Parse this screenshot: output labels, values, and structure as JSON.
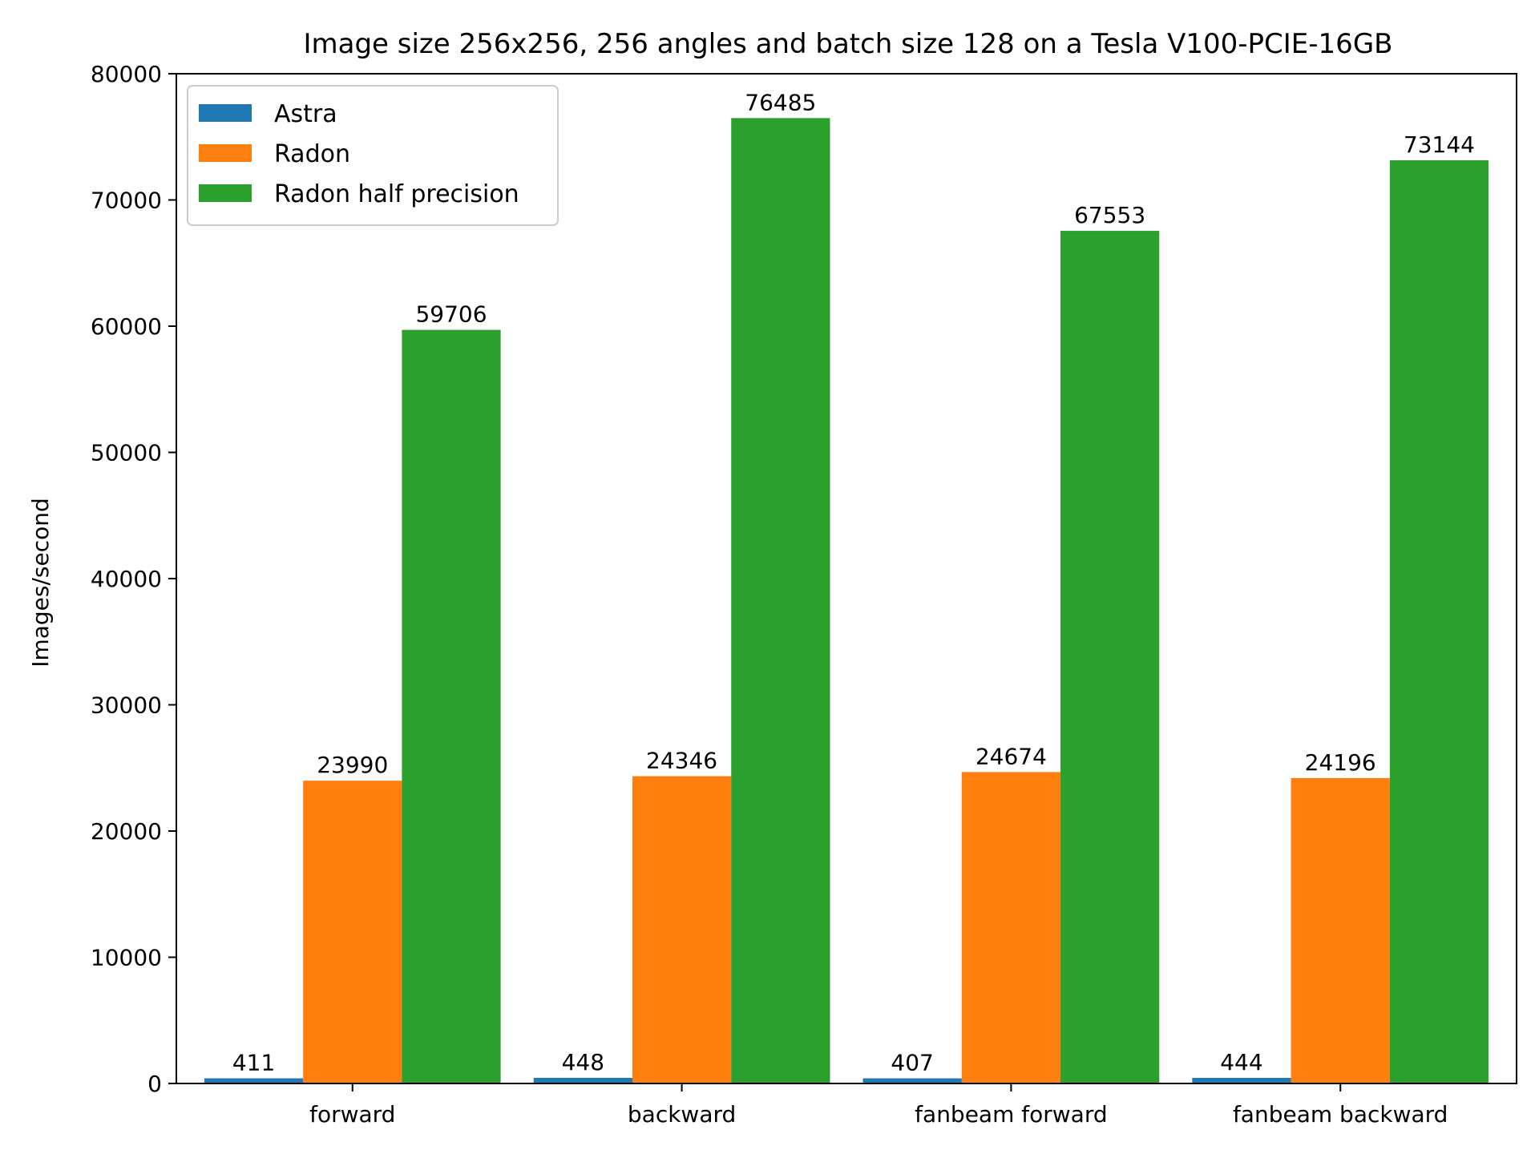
{
  "chart_data": {
    "type": "bar",
    "title": "Image size 256x256, 256 angles and batch size 128 on a Tesla V100-PCIE-16GB",
    "xlabel": "",
    "ylabel": "Images/second",
    "ylim": [
      0,
      80000
    ],
    "yticks": [
      0,
      10000,
      20000,
      30000,
      40000,
      50000,
      60000,
      70000,
      80000
    ],
    "categories": [
      "forward",
      "backward",
      "fanbeam forward",
      "fanbeam backward"
    ],
    "series": [
      {
        "name": "Astra",
        "color": "#1f77b4",
        "values": [
          411,
          448,
          407,
          444
        ]
      },
      {
        "name": "Radon",
        "color": "#ff7f0e",
        "values": [
          23990,
          24346,
          24674,
          24196
        ]
      },
      {
        "name": "Radon half precision",
        "color": "#2ca02c",
        "values": [
          59706,
          76485,
          67553,
          73144
        ]
      }
    ],
    "grid": false,
    "legend_position": "top-left"
  }
}
